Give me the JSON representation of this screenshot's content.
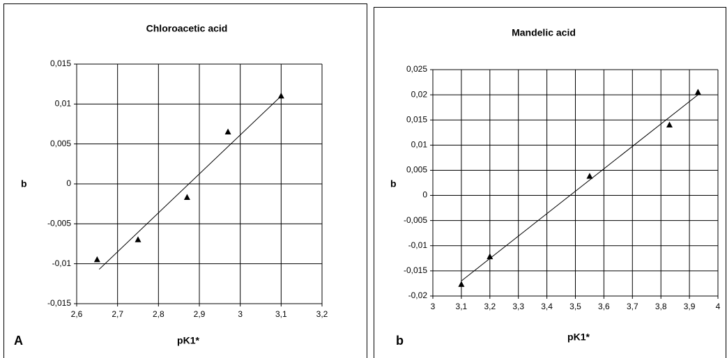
{
  "chart_data": [
    {
      "type": "scatter",
      "title": "Chloroacetic acid",
      "x_label": "pK1*",
      "y_label": "b",
      "panel_label": "A",
      "x": [
        2.65,
        2.75,
        2.87,
        2.97,
        3.1
      ],
      "values": [
        -0.0095,
        -0.007,
        -0.0017,
        0.0065,
        0.011
      ],
      "color": "#000000",
      "trendline": {
        "x": [
          2.655,
          3.1
        ],
        "values": [
          -0.0107,
          0.011
        ]
      },
      "xlim": [
        2.6,
        3.2
      ],
      "ylim": [
        -0.015,
        0.015
      ],
      "grid": true,
      "xticks": [
        {
          "value": 2.6,
          "label": "2,6"
        },
        {
          "value": 2.7,
          "label": "2,7"
        },
        {
          "value": 2.8,
          "label": "2,8"
        },
        {
          "value": 2.9,
          "label": "2,9"
        },
        3,
        {
          "value": 3.1,
          "label": "3,1"
        },
        {
          "value": 3.2,
          "label": "3,2"
        }
      ],
      "yticks": [
        {
          "value": -0.015,
          "label": "-0,015"
        },
        {
          "value": -0.01,
          "label": "-0,01"
        },
        {
          "value": -0.005,
          "label": "-0,005"
        },
        0,
        {
          "value": 0.005,
          "label": "0,005"
        },
        {
          "value": 0.01,
          "label": "0,01"
        },
        {
          "value": 0.015,
          "label": "0,015"
        }
      ]
    },
    {
      "type": "scatter",
      "title": "Mandelic acid",
      "x_label": "pK1*",
      "y_label": "b",
      "panel_label": "b",
      "x": [
        3.1,
        3.2,
        3.55,
        3.83,
        3.93
      ],
      "values": [
        -0.0177,
        -0.0122,
        0.0038,
        0.014,
        0.0205
      ],
      "color": "#000000",
      "trendline": {
        "x": [
          3.1,
          3.93
        ],
        "values": [
          -0.017,
          0.02
        ]
      },
      "xlim": [
        3,
        4
      ],
      "ylim": [
        -0.02,
        0.025
      ],
      "grid": true,
      "xticks": [
        3,
        {
          "value": 3.1,
          "label": "3,1"
        },
        {
          "value": 3.2,
          "label": "3,2"
        },
        {
          "value": 3.3,
          "label": "3,3"
        },
        {
          "value": 3.4,
          "label": "3,4"
        },
        {
          "value": 3.5,
          "label": "3,5"
        },
        {
          "value": 3.6,
          "label": "3,6"
        },
        {
          "value": 3.7,
          "label": "3,7"
        },
        {
          "value": 3.8,
          "label": "3,8"
        },
        {
          "value": 3.9,
          "label": "3,9"
        },
        4
      ],
      "yticks": [
        {
          "value": -0.02,
          "label": "-0,02"
        },
        {
          "value": -0.015,
          "label": "-0,015"
        },
        {
          "value": -0.01,
          "label": "-0,01"
        },
        {
          "value": -0.005,
          "label": "-0,005"
        },
        0,
        {
          "value": 0.005,
          "label": "0,005"
        },
        {
          "value": 0.01,
          "label": "0,01"
        },
        {
          "value": 0.015,
          "label": "0,015"
        },
        {
          "value": 0.02,
          "label": "0,02"
        },
        {
          "value": 0.025,
          "label": "0,025"
        }
      ]
    }
  ]
}
